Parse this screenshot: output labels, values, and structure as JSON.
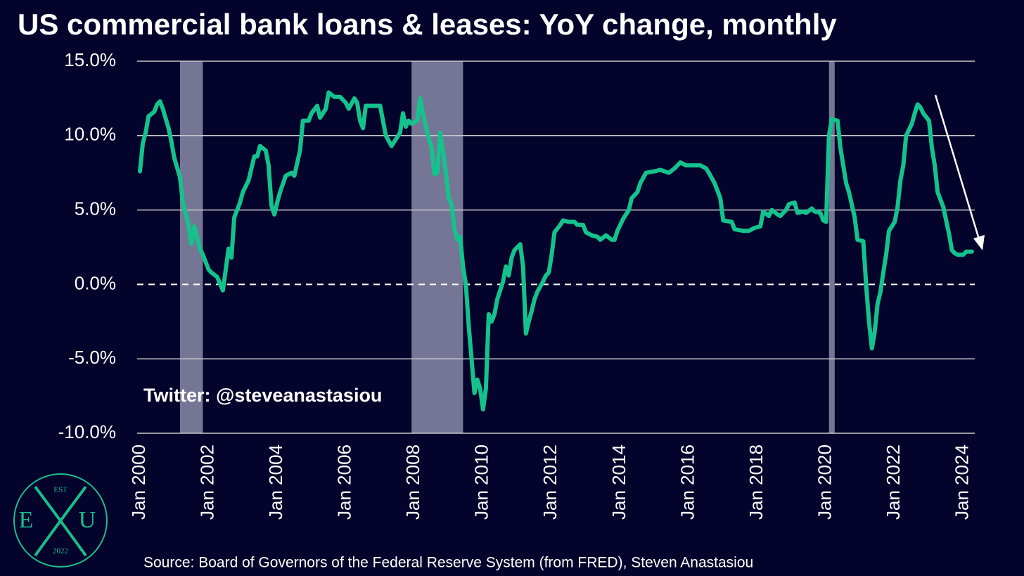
{
  "chart_data": {
    "type": "line",
    "title": "US commercial bank loans & leases: YoY change, monthly",
    "annotation": "Twitter: @steveanastasiou",
    "source": "Source: Board of Governors of the Federal Reserve System (from FRED), Steven Anastasiou",
    "logo": {
      "top": "EST",
      "left": "E",
      "right": "U",
      "bottom": "2022"
    },
    "color": "#14c28d",
    "grid": true,
    "xlim": [
      "2000-01",
      "2024-05"
    ],
    "ylim": [
      -10,
      15
    ],
    "yticks": [
      {
        "value": 15,
        "label": "15.0%"
      },
      {
        "value": 10,
        "label": "10.0%"
      },
      {
        "value": 5,
        "label": "5.0%"
      },
      {
        "value": 0,
        "label": "0.0%"
      },
      {
        "value": -5,
        "label": "-5.0%"
      },
      {
        "value": -10,
        "label": "-10.0%"
      }
    ],
    "xticks": [
      {
        "value": "2000-01",
        "label": "Jan 2000"
      },
      {
        "value": "2002-01",
        "label": "Jan 2002"
      },
      {
        "value": "2004-01",
        "label": "Jan 2004"
      },
      {
        "value": "2006-01",
        "label": "Jan 2006"
      },
      {
        "value": "2008-01",
        "label": "Jan 2008"
      },
      {
        "value": "2010-01",
        "label": "Jan 2010"
      },
      {
        "value": "2012-01",
        "label": "Jan 2012"
      },
      {
        "value": "2014-01",
        "label": "Jan 2014"
      },
      {
        "value": "2016-01",
        "label": "Jan 2016"
      },
      {
        "value": "2018-01",
        "label": "Jan 2018"
      },
      {
        "value": "2020-01",
        "label": "Jan 2020"
      },
      {
        "value": "2022-01",
        "label": "Jan 2022"
      },
      {
        "value": "2024-01",
        "label": "Jan 2024"
      }
    ],
    "shaded_periods": [
      {
        "start": "2001-03",
        "end": "2001-11"
      },
      {
        "start": "2007-12",
        "end": "2009-06"
      },
      {
        "start": "2020-02",
        "end": "2020-04"
      }
    ],
    "x": [
      "2000-01",
      "2000-02",
      "2000-03",
      "2000-04",
      "2000-06",
      "2000-07",
      "2000-08",
      "2000-09",
      "2000-11",
      "2000-12",
      "2001-01",
      "2001-03",
      "2001-04",
      "2001-06",
      "2001-07",
      "2001-08",
      "2001-10",
      "2001-11",
      "2002-01",
      "2002-02",
      "2002-04",
      "2002-06",
      "2002-07",
      "2002-08",
      "2002-09",
      "2002-10",
      "2002-12",
      "2003-01",
      "2003-03",
      "2003-05",
      "2003-06",
      "2003-07",
      "2003-09",
      "2003-10",
      "2003-11",
      "2003-12",
      "2004-01",
      "2004-02",
      "2004-04",
      "2004-06",
      "2004-07",
      "2004-09",
      "2004-10",
      "2004-12",
      "2005-01",
      "2005-03",
      "2005-04",
      "2005-06",
      "2005-07",
      "2005-09",
      "2005-11",
      "2006-01",
      "2006-02",
      "2006-04",
      "2006-05",
      "2006-06",
      "2006-07",
      "2006-08",
      "2006-10",
      "2007-01",
      "2007-03",
      "2007-05",
      "2007-06",
      "2007-08",
      "2007-09",
      "2007-10",
      "2007-11",
      "2007-12",
      "2008-02",
      "2008-03",
      "2008-04",
      "2008-06",
      "2008-07",
      "2008-08",
      "2008-09",
      "2008-10",
      "2008-11",
      "2008-12",
      "2009-01",
      "2009-02",
      "2009-03",
      "2009-04",
      "2009-05",
      "2009-06",
      "2009-07",
      "2009-08",
      "2009-10",
      "2009-11",
      "2009-12",
      "2010-01",
      "2010-02",
      "2010-03",
      "2010-04",
      "2010-05",
      "2010-06",
      "2010-08",
      "2010-09",
      "2010-10",
      "2010-11",
      "2010-12",
      "2011-02",
      "2011-03",
      "2011-04",
      "2011-05",
      "2011-06",
      "2011-07",
      "2011-08",
      "2011-10",
      "2011-11",
      "2011-12",
      "2012-01",
      "2012-02",
      "2012-04",
      "2012-05",
      "2012-07",
      "2012-09",
      "2012-10",
      "2012-12",
      "2013-01",
      "2013-03",
      "2013-05",
      "2013-06",
      "2013-08",
      "2013-10",
      "2013-11",
      "2013-12",
      "2014-02",
      "2014-04",
      "2014-05",
      "2014-07",
      "2014-08",
      "2014-10",
      "2015-01",
      "2015-03",
      "2015-06",
      "2015-08",
      "2015-10",
      "2015-12",
      "2016-02",
      "2016-05",
      "2016-07",
      "2016-08",
      "2016-10",
      "2016-12",
      "2017-01",
      "2017-04",
      "2017-05",
      "2017-08",
      "2017-10",
      "2017-12",
      "2018-02",
      "2018-03",
      "2018-05",
      "2018-06",
      "2018-08",
      "2018-09",
      "2018-11",
      "2018-12",
      "2019-02",
      "2019-03",
      "2019-05",
      "2019-06",
      "2019-08",
      "2019-09",
      "2019-11",
      "2019-12",
      "2020-01",
      "2020-02",
      "2020-03",
      "2020-05",
      "2020-06",
      "2020-07",
      "2020-08",
      "2020-09",
      "2020-11",
      "2020-12",
      "2021-02",
      "2021-03",
      "2021-04",
      "2021-05",
      "2021-06",
      "2021-07",
      "2021-08",
      "2021-09",
      "2021-10",
      "2021-11",
      "2022-01",
      "2022-02",
      "2022-03",
      "2022-04",
      "2022-05",
      "2022-07",
      "2022-08",
      "2022-09",
      "2022-10",
      "2022-11",
      "2023-01",
      "2023-02",
      "2023-03",
      "2023-04",
      "2023-06",
      "2023-07",
      "2023-08",
      "2023-09",
      "2023-10",
      "2023-11",
      "2024-01",
      "2024-02",
      "2024-04"
    ],
    "values": [
      7.6,
      9.5,
      10.2,
      11.3,
      11.6,
      12.1,
      12.3,
      11.8,
      10.5,
      9.6,
      8.5,
      7.2,
      5.5,
      4.0,
      2.7,
      3.9,
      2.4,
      2.0,
      1.0,
      0.8,
      0.5,
      -0.4,
      1.0,
      2.4,
      1.8,
      4.5,
      5.5,
      6.2,
      7.0,
      8.6,
      8.6,
      9.3,
      9.0,
      8.0,
      5.3,
      4.7,
      5.5,
      6.2,
      7.3,
      7.5,
      7.3,
      9.0,
      11.0,
      11.0,
      11.5,
      12.0,
      11.2,
      11.8,
      12.9,
      12.6,
      12.6,
      12.2,
      11.8,
      12.5,
      12.2,
      11.0,
      10.5,
      12.0,
      12.0,
      12.0,
      10.0,
      9.3,
      9.6,
      10.2,
      11.5,
      10.6,
      11.0,
      10.8,
      11.0,
      12.5,
      11.5,
      9.8,
      9.2,
      7.4,
      7.5,
      10.2,
      9.0,
      7.5,
      5.8,
      5.4,
      3.7,
      3.0,
      3.2,
      1.2,
      0.0,
      -2.8,
      -7.3,
      -6.4,
      -7.0,
      -8.4,
      -7.0,
      -2.0,
      -2.5,
      -2.0,
      -1.0,
      0.2,
      1.2,
      0.6,
      1.8,
      2.3,
      2.7,
      1.2,
      -3.3,
      -2.5,
      -1.8,
      -1.0,
      -0.5,
      0.2,
      0.6,
      0.8,
      2.0,
      3.5,
      4.0,
      4.3,
      4.2,
      4.2,
      4.0,
      4.0,
      3.5,
      3.3,
      3.2,
      3.0,
      3.3,
      3.0,
      3.0,
      3.6,
      4.4,
      5.0,
      5.8,
      6.2,
      6.8,
      7.5,
      7.6,
      7.7,
      7.5,
      7.8,
      8.2,
      8.0,
      8.0,
      8.0,
      7.8,
      7.5,
      6.8,
      5.8,
      4.3,
      4.2,
      3.7,
      3.6,
      3.6,
      3.8,
      3.9,
      4.9,
      4.6,
      5.0,
      4.7,
      4.6,
      5.0,
      5.4,
      5.5,
      4.8,
      4.9,
      4.8,
      5.1,
      4.9,
      4.8,
      4.3,
      4.2,
      10.0,
      11.1,
      11.0,
      9.2,
      8.0,
      6.8,
      6.2,
      4.5,
      3.0,
      2.9,
      0.0,
      -2.5,
      -4.3,
      -3.2,
      -1.3,
      -0.5,
      0.8,
      2.0,
      3.6,
      4.2,
      5.2,
      7.0,
      8.0,
      10.0,
      10.8,
      11.5,
      12.1,
      11.9,
      11.5,
      11.0,
      9.2,
      8.0,
      6.2,
      5.2,
      4.3,
      3.4,
      2.3,
      2.1,
      2.0,
      2.0,
      2.2,
      2.2
    ]
  }
}
